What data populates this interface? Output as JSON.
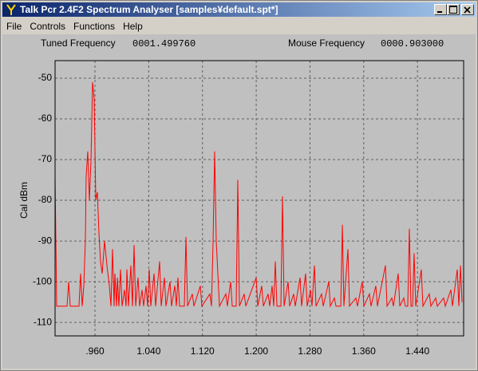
{
  "window": {
    "title": "Talk Pcr 2.4F2 Spectrum Analyser [samples¥default.spt*]"
  },
  "menu": [
    "File",
    "Controls",
    "Functions",
    "Help"
  ],
  "header": {
    "tuned_label": "Tuned Frequency",
    "tuned_value": "0001.499760",
    "mouse_label": "Mouse Frequency",
    "mouse_value": "0000.903000"
  },
  "chart_data": {
    "type": "line",
    "ylabel": "Cal dBm",
    "color": "#ff0000",
    "grid": true,
    "xlim": [
      0.9006,
      1.5087
    ],
    "ylim": [
      -113.3,
      -45.7
    ],
    "xticks": [
      {
        "value": 0.96,
        "label": ".960"
      },
      {
        "value": 1.04,
        "label": "1.040"
      },
      {
        "value": 1.12,
        "label": "1.120"
      },
      {
        "value": 1.2,
        "label": "1.200"
      },
      {
        "value": 1.28,
        "label": "1.280"
      },
      {
        "value": 1.36,
        "label": "1.360"
      },
      {
        "value": 1.44,
        "label": "1.440"
      }
    ],
    "yticks": [
      -50,
      -60,
      -70,
      -80,
      -90,
      -100,
      -110
    ],
    "x": [
      0.9006,
      0.903,
      0.9184,
      0.9208,
      0.9232,
      0.9362,
      0.9386,
      0.941,
      0.9434,
      0.9457,
      0.9469,
      0.9493,
      0.9517,
      0.9541,
      0.9564,
      0.9588,
      0.9612,
      0.9636,
      0.9659,
      0.9683,
      0.9707,
      0.9743,
      0.9778,
      0.9814,
      0.9838,
      0.9861,
      0.9885,
      0.9897,
      0.9921,
      0.9933,
      0.9956,
      0.998,
      1.0004,
      1.0039,
      1.0063,
      1.0075,
      1.0099,
      1.0134,
      1.0158,
      1.0182,
      1.0206,
      1.0241,
      1.0265,
      1.0301,
      1.0324,
      1.036,
      1.0384,
      1.0408,
      1.0431,
      1.0479,
      1.0503,
      1.0562,
      1.0586,
      1.0633,
      1.0657,
      1.0716,
      1.074,
      1.0788,
      1.0811,
      1.0835,
      1.0859,
      1.093,
      1.0954,
      1.0978,
      1.1049,
      1.1073,
      1.1168,
      1.1191,
      1.131,
      1.1334,
      1.1358,
      1.1381,
      1.1405,
      1.1429,
      1.1453,
      1.1548,
      1.1571,
      1.1619,
      1.1643,
      1.1702,
      1.1726,
      1.175,
      1.1821,
      1.1845,
      1.1999,
      1.2023,
      1.2082,
      1.2106,
      1.2177,
      1.2201,
      1.2236,
      1.226,
      1.2284,
      1.2308,
      1.2367,
      1.2391,
      1.2415,
      1.2474,
      1.2498,
      1.2557,
      1.2581,
      1.2652,
      1.2676,
      1.2735,
      1.2759,
      1.2807,
      1.283,
      1.2866,
      1.289,
      1.2973,
      1.2997,
      1.308,
      1.3103,
      1.3163,
      1.3187,
      1.3258,
      1.3282,
      1.3305,
      1.3365,
      1.3388,
      1.3483,
      1.3507,
      1.3578,
      1.3602,
      1.3685,
      1.3709,
      1.378,
      1.3804,
      1.3923,
      1.3947,
      1.4018,
      1.4042,
      1.4113,
      1.4137,
      1.4196,
      1.422,
      1.4255,
      1.4279,
      1.4303,
      1.4327,
      1.435,
      1.4374,
      1.4457,
      1.4481,
      1.4576,
      1.46,
      1.4671,
      1.4695,
      1.479,
      1.4814,
      1.4897,
      1.4921,
      1.4992,
      1.5016,
      1.504,
      1.5063
    ],
    "values": [
      -74,
      -106,
      -106,
      -100,
      -106,
      -106,
      -98,
      -106,
      -101,
      -90,
      -74,
      -68,
      -80,
      -70,
      -51,
      -55,
      -80,
      -78,
      -88,
      -95,
      -98,
      -90,
      -96,
      -101,
      -106,
      -92,
      -106,
      -98,
      -106,
      -99,
      -106,
      -97,
      -106,
      -102,
      -106,
      -97,
      -106,
      -96,
      -106,
      -91,
      -106,
      -99,
      -106,
      -102,
      -106,
      -101,
      -106,
      -97,
      -106,
      -98,
      -106,
      -95,
      -106,
      -99,
      -106,
      -100,
      -106,
      -101,
      -106,
      -99,
      -106,
      -106,
      -89,
      -106,
      -103,
      -106,
      -101,
      -106,
      -103,
      -106,
      -90,
      -68,
      -90,
      -98,
      -106,
      -103,
      -106,
      -100,
      -106,
      -106,
      -75,
      -106,
      -103,
      -106,
      -99,
      -106,
      -101,
      -106,
      -103,
      -106,
      -101,
      -106,
      -95,
      -106,
      -106,
      -79,
      -106,
      -100,
      -106,
      -103,
      -106,
      -99,
      -106,
      -98,
      -106,
      -102,
      -106,
      -96,
      -106,
      -103,
      -106,
      -100,
      -106,
      -104,
      -106,
      -106,
      -86,
      -106,
      -92,
      -106,
      -104,
      -106,
      -100,
      -106,
      -103,
      -106,
      -101,
      -106,
      -96,
      -106,
      -104,
      -106,
      -98,
      -106,
      -104,
      -106,
      -106,
      -87,
      -106,
      -106,
      -93,
      -106,
      -97,
      -106,
      -103,
      -106,
      -104,
      -106,
      -104,
      -106,
      -102,
      -106,
      -97,
      -106,
      -96,
      -105
    ]
  }
}
